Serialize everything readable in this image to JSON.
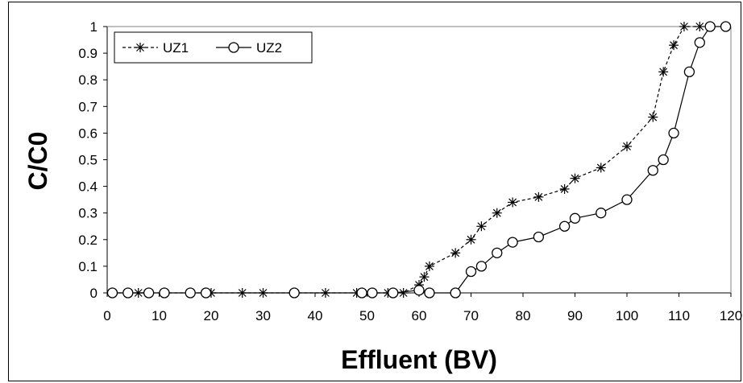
{
  "chart_data": {
    "type": "line",
    "xlabel": "Effluent (BV)",
    "ylabel": "C/C0",
    "xlim": [
      0,
      120
    ],
    "ylim": [
      0,
      1
    ],
    "x_ticks": [
      "0",
      "10",
      "20",
      "30",
      "40",
      "50",
      "60",
      "70",
      "80",
      "90",
      "100",
      "110",
      "120"
    ],
    "y_ticks": [
      "0",
      "0.1",
      "0.2",
      "0.3",
      "0.4",
      "0.5",
      "0.6",
      "0.7",
      "0.8",
      "0.9",
      "1"
    ],
    "grid": false,
    "legend_position": "top-left",
    "series": [
      {
        "name": "UZ1",
        "marker": "star",
        "line_style": "dashed",
        "color": "#000000",
        "x": [
          1,
          6,
          8,
          16,
          20,
          26,
          30,
          36,
          42,
          48,
          54,
          57,
          60,
          61,
          62,
          67,
          70,
          72,
          75,
          78,
          83,
          88,
          90,
          95,
          100,
          105,
          107,
          109,
          111,
          114
        ],
        "y": [
          0,
          0,
          0,
          0,
          0,
          0,
          0,
          0,
          0,
          0,
          0,
          0,
          0.03,
          0.06,
          0.1,
          0.15,
          0.2,
          0.25,
          0.3,
          0.34,
          0.36,
          0.39,
          0.43,
          0.47,
          0.55,
          0.66,
          0.83,
          0.93,
          1,
          1
        ]
      },
      {
        "name": "UZ2",
        "marker": "circle",
        "line_style": "solid",
        "color": "#000000",
        "x": [
          1,
          4,
          8,
          11,
          16,
          19,
          36,
          49,
          51,
          55,
          60,
          62,
          67,
          70,
          72,
          75,
          78,
          83,
          88,
          90,
          95,
          100,
          105,
          107,
          109,
          112,
          114,
          116,
          119
        ],
        "y": [
          0,
          0,
          0,
          0,
          0,
          0,
          0,
          0,
          0,
          0,
          0.01,
          0,
          0,
          0.08,
          0.1,
          0.15,
          0.19,
          0.21,
          0.25,
          0.28,
          0.3,
          0.35,
          0.46,
          0.5,
          0.6,
          0.83,
          0.94,
          1,
          1
        ]
      }
    ]
  }
}
